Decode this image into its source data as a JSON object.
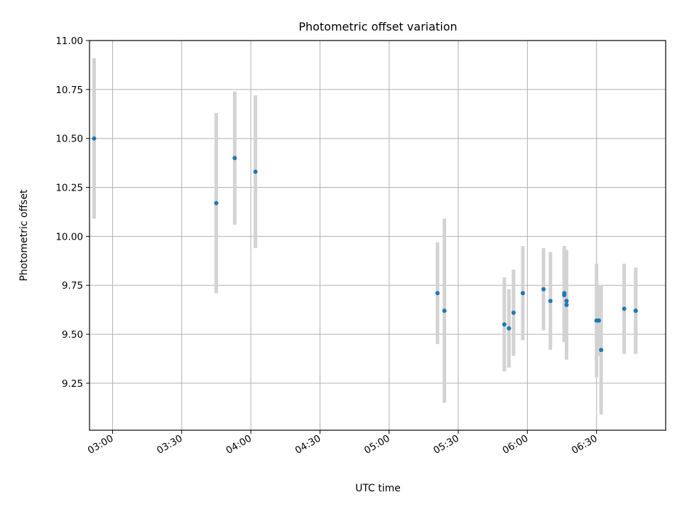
{
  "chart_data": {
    "type": "scatter",
    "title": "Photometric offset variation",
    "xlabel": "UTC time",
    "ylabel": "Photometric offset",
    "x_unit": "UTC clock time (HH:MM)",
    "xlim": [
      "02:50",
      "07:00"
    ],
    "ylim": [
      9.01,
      11.0
    ],
    "grid": true,
    "x_ticks": [
      "03:00",
      "03:30",
      "04:00",
      "04:30",
      "05:00",
      "05:30",
      "06:00",
      "06:30"
    ],
    "y_ticks": [
      "9.25",
      "9.50",
      "9.75",
      "10.00",
      "10.25",
      "10.50",
      "10.75",
      "11.00"
    ],
    "y_tick_values": [
      9.25,
      9.5,
      9.75,
      10.0,
      10.25,
      10.5,
      10.75,
      11.0
    ],
    "marker_color": "#1f77b4",
    "errorbar_color": "#d3d3d3",
    "points": [
      {
        "x": "02:52",
        "y": 10.5,
        "err": 0.41
      },
      {
        "x": "03:45",
        "y": 10.17,
        "err": 0.46
      },
      {
        "x": "03:53",
        "y": 10.4,
        "err": 0.34
      },
      {
        "x": "04:02",
        "y": 10.33,
        "err": 0.39
      },
      {
        "x": "05:21",
        "y": 9.71,
        "err": 0.26
      },
      {
        "x": "05:24",
        "y": 9.62,
        "err": 0.47
      },
      {
        "x": "05:50",
        "y": 9.55,
        "err": 0.24
      },
      {
        "x": "05:52",
        "y": 9.53,
        "err": 0.2
      },
      {
        "x": "05:54",
        "y": 9.61,
        "err": 0.22
      },
      {
        "x": "05:58",
        "y": 9.71,
        "err": 0.24
      },
      {
        "x": "06:07",
        "y": 9.73,
        "err": 0.21
      },
      {
        "x": "06:10",
        "y": 9.67,
        "err": 0.25
      },
      {
        "x": "06:16",
        "y": 9.71,
        "err": 0.24
      },
      {
        "x": "06:16",
        "y": 9.7,
        "err": 0.24
      },
      {
        "x": "06:17",
        "y": 9.67,
        "err": 0.26
      },
      {
        "x": "06:17",
        "y": 9.65,
        "err": 0.28
      },
      {
        "x": "06:30",
        "y": 9.57,
        "err": 0.29
      },
      {
        "x": "06:31",
        "y": 9.57,
        "err": 0.18
      },
      {
        "x": "06:32",
        "y": 9.42,
        "err": 0.33
      },
      {
        "x": "06:42",
        "y": 9.63,
        "err": 0.23
      },
      {
        "x": "06:47",
        "y": 9.62,
        "err": 0.22
      },
      {
        "x": "06:47",
        "y": 9.62,
        "err": 0.22
      }
    ]
  }
}
